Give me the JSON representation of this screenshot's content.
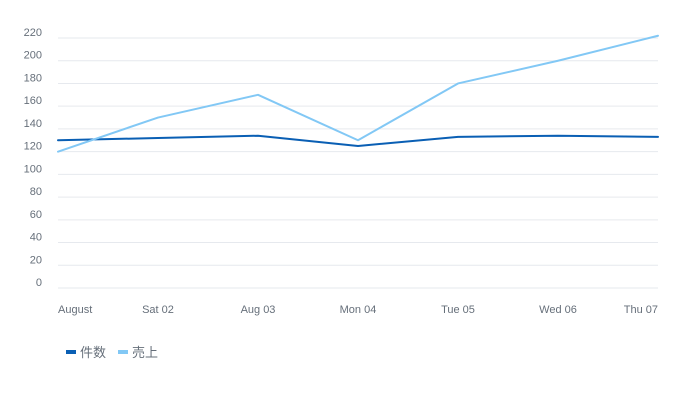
{
  "chart_data": {
    "type": "line",
    "categories": [
      "August",
      "Sat 02",
      "Aug 03",
      "Mon 04",
      "Tue 05",
      "Wed 06",
      "Thu 07"
    ],
    "y_ticks": [
      0,
      20,
      40,
      60,
      80,
      100,
      120,
      140,
      160,
      180,
      200,
      220
    ],
    "ylim": [
      0,
      220
    ],
    "grid": true,
    "legend_position": "bottom-left",
    "series": [
      {
        "name": "件数",
        "color": "#0a5fb4",
        "values": [
          130,
          132,
          134,
          125,
          133,
          134,
          133
        ]
      },
      {
        "name": "売上",
        "color": "#82c8f5",
        "values": [
          120,
          150,
          170,
          130,
          180,
          200,
          222
        ]
      }
    ]
  }
}
